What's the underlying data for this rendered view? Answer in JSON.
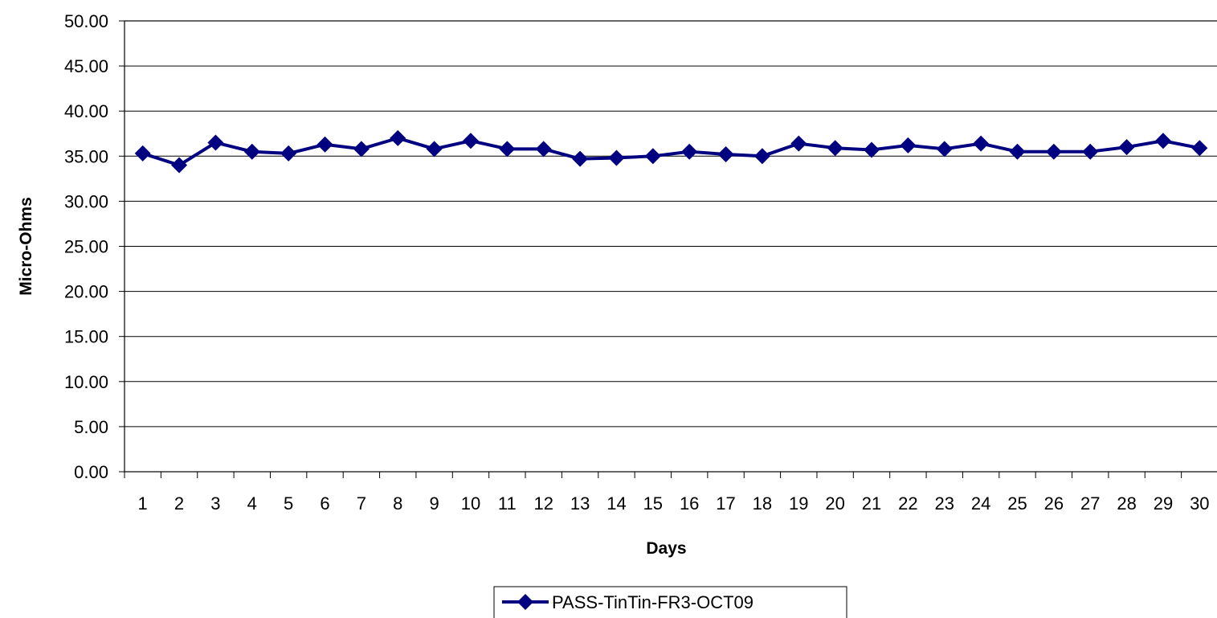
{
  "chart_data": {
    "type": "line",
    "title": "",
    "xlabel": "Days",
    "ylabel": "Micro-Ohms",
    "ylim": [
      0,
      50
    ],
    "ytick_step": 5,
    "ytick_format_decimals": 2,
    "grid": true,
    "legend_position": "bottom-center",
    "categories": [
      "1",
      "2",
      "3",
      "4",
      "5",
      "6",
      "7",
      "8",
      "9",
      "10",
      "11",
      "12",
      "13",
      "14",
      "15",
      "16",
      "17",
      "18",
      "19",
      "20",
      "21",
      "22",
      "23",
      "24",
      "25",
      "26",
      "27",
      "28",
      "29",
      "30"
    ],
    "series": [
      {
        "name": "PASS-TinTin-FR3-OCT09",
        "color": "#000080",
        "marker": "diamond",
        "values": [
          35.3,
          34.0,
          36.5,
          35.5,
          35.3,
          36.3,
          35.8,
          37.0,
          35.8,
          36.7,
          35.8,
          35.8,
          34.7,
          34.8,
          35.0,
          35.5,
          35.2,
          35.0,
          36.4,
          35.9,
          35.7,
          36.2,
          35.8,
          36.4,
          35.5,
          35.5,
          35.5,
          36.0,
          36.7,
          35.9
        ]
      }
    ]
  }
}
